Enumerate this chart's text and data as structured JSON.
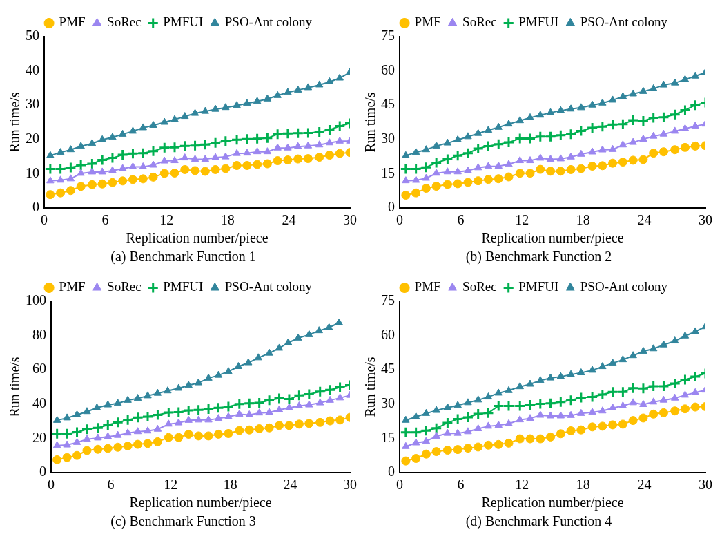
{
  "chart_data": [
    {
      "type": "line",
      "xlabel": "Replication number/piece",
      "ylabel": "Run time/s",
      "annotations": [
        "(a) Benchmark Function 1"
      ],
      "legend": "top",
      "xlim": [
        0,
        30
      ],
      "xticks": [
        0,
        6,
        12,
        18,
        24,
        30
      ],
      "ylim": [
        0,
        50
      ],
      "yticks": [
        0,
        10,
        20,
        30,
        40,
        50
      ],
      "x": [
        0.6,
        1.6,
        2.6,
        3.6,
        4.7,
        5.7,
        6.7,
        7.7,
        8.7,
        9.7,
        10.7,
        11.8,
        12.8,
        13.8,
        14.8,
        15.8,
        16.8,
        17.8,
        18.9,
        19.9,
        20.9,
        21.9,
        22.9,
        23.9,
        24.9,
        25.9,
        27.0,
        28.0,
        29.0,
        30.0
      ],
      "series": [
        {
          "name": "PMF",
          "color": "#ffc000",
          "marker": "circle",
          "values": [
            3.9,
            4.4,
            5.1,
            6.3,
            6.8,
            7.0,
            7.4,
            7.9,
            8.3,
            8.5,
            9.0,
            10.1,
            10.2,
            11.2,
            10.9,
            10.7,
            11.2,
            11.5,
            12.4,
            12.4,
            12.7,
            12.9,
            13.8,
            14.0,
            14.3,
            14.4,
            14.8,
            15.4,
            15.9,
            16.2
          ]
        },
        {
          "name": "SoRec",
          "color": "#9b86f0",
          "marker": "triangle",
          "values": [
            7.9,
            8.1,
            8.5,
            10.1,
            10.5,
            10.5,
            10.9,
            11.5,
            12.0,
            12.0,
            12.5,
            13.7,
            13.8,
            14.6,
            14.2,
            14.2,
            14.7,
            14.9,
            15.9,
            16.0,
            16.4,
            16.4,
            17.5,
            17.5,
            17.9,
            18.1,
            18.4,
            19.0,
            19.5,
            19.5
          ]
        },
        {
          "name": "PMFUI",
          "color": "#00b050",
          "marker": "cross",
          "values": [
            11.4,
            11.4,
            11.8,
            12.5,
            12.9,
            14.0,
            14.6,
            15.5,
            15.9,
            16.0,
            16.6,
            17.6,
            17.7,
            18.1,
            18.2,
            18.5,
            19.0,
            19.5,
            19.9,
            20.1,
            20.2,
            20.4,
            21.5,
            21.7,
            21.8,
            21.9,
            22.2,
            22.8,
            23.9,
            24.7
          ]
        },
        {
          "name": "PSO-Ant colony",
          "color": "#31859c",
          "marker": "triangle",
          "values": [
            15.3,
            16.2,
            17.0,
            18.0,
            18.8,
            19.9,
            20.6,
            21.5,
            22.4,
            23.4,
            24.1,
            25.0,
            25.8,
            26.7,
            27.6,
            28.2,
            28.8,
            29.3,
            29.9,
            30.5,
            31.1,
            31.8,
            32.8,
            33.7,
            34.4,
            35.1,
            35.9,
            36.8,
            37.9,
            39.6
          ]
        }
      ]
    },
    {
      "type": "line",
      "xlabel": "Replication number/piece",
      "ylabel": "Run time/s",
      "annotations": [
        "(b) Benchmark Function 2"
      ],
      "legend": "top",
      "xlim": [
        0,
        30
      ],
      "xticks": [
        0,
        6,
        12,
        18,
        24,
        30
      ],
      "ylim": [
        0,
        75
      ],
      "yticks": [
        0,
        15,
        30,
        45,
        60,
        75
      ],
      "x": [
        0.6,
        1.6,
        2.6,
        3.6,
        4.7,
        5.7,
        6.7,
        7.7,
        8.7,
        9.7,
        10.7,
        11.8,
        12.8,
        13.8,
        14.8,
        15.8,
        16.8,
        17.8,
        18.9,
        19.9,
        20.9,
        21.9,
        22.9,
        23.9,
        24.9,
        25.9,
        27.0,
        28.0,
        29.0,
        30.0
      ],
      "series": [
        {
          "name": "PMF",
          "color": "#ffc000",
          "marker": "circle",
          "values": [
            5.6,
            6.6,
            8.6,
            9.5,
            10.3,
            10.6,
            11.2,
            11.9,
            12.5,
            12.8,
            13.6,
            15.2,
            15.2,
            16.9,
            16.1,
            16.1,
            16.8,
            17.2,
            18.3,
            18.5,
            19.6,
            20.1,
            20.9,
            21.2,
            24.0,
            24.6,
            25.5,
            26.5,
            27.1,
            27.3
          ]
        },
        {
          "name": "SoRec",
          "color": "#9b86f0",
          "marker": "triangle",
          "values": [
            11.9,
            12.1,
            13.0,
            15.2,
            15.8,
            15.8,
            16.3,
            17.6,
            18.2,
            18.3,
            19.1,
            20.7,
            20.7,
            21.8,
            21.3,
            21.5,
            22.3,
            23.5,
            24.5,
            25.4,
            25.6,
            27.6,
            28.7,
            30.1,
            31.4,
            32.3,
            33.6,
            34.7,
            35.8,
            36.7
          ]
        },
        {
          "name": "PMFUI",
          "color": "#00b050",
          "marker": "cross",
          "values": [
            17.1,
            17.1,
            17.8,
            19.8,
            21.3,
            22.9,
            24.0,
            26.0,
            27.1,
            27.9,
            28.7,
            30.4,
            30.4,
            31.2,
            31.2,
            31.8,
            32.3,
            33.7,
            35.1,
            35.6,
            36.5,
            36.7,
            38.4,
            38.1,
            39.5,
            39.7,
            40.9,
            42.8,
            45.0,
            46.1
          ]
        },
        {
          "name": "PSO-Ant colony",
          "color": "#31859c",
          "marker": "triangle",
          "values": [
            22.9,
            24.3,
            25.5,
            27.1,
            28.4,
            29.8,
            31.2,
            32.6,
            34.0,
            35.3,
            36.7,
            38.2,
            39.5,
            40.6,
            41.7,
            42.6,
            43.3,
            43.9,
            45.0,
            45.9,
            47.2,
            48.7,
            49.9,
            51.0,
            52.2,
            53.8,
            54.7,
            56.2,
            57.7,
            59.3
          ]
        }
      ]
    },
    {
      "type": "line",
      "xlabel": "Replication number/piece",
      "ylabel": "Run time/s",
      "annotations": [
        "(c) Benchmark Function 3"
      ],
      "legend": "top",
      "xlim": [
        0,
        30
      ],
      "xticks": [
        0,
        6,
        12,
        18,
        24,
        30
      ],
      "ylim": [
        0,
        100
      ],
      "yticks": [
        0,
        20,
        40,
        60,
        80,
        100
      ],
      "x": [
        0.6,
        1.6,
        2.6,
        3.6,
        4.7,
        5.7,
        6.7,
        7.7,
        8.7,
        9.7,
        10.7,
        11.8,
        12.8,
        13.8,
        14.8,
        15.8,
        16.8,
        17.8,
        18.9,
        19.9,
        20.9,
        21.9,
        22.9,
        23.9,
        24.9,
        25.9,
        27.0,
        28.0,
        29.0,
        30.0
      ],
      "series": [
        {
          "name": "PMF",
          "color": "#ffc000",
          "marker": "circle",
          "values": [
            7.5,
            8.8,
            10.0,
            12.9,
            13.6,
            14.1,
            14.8,
            15.5,
            16.5,
            17.0,
            18.0,
            20.5,
            20.5,
            22.4,
            21.4,
            21.4,
            22.4,
            22.8,
            24.6,
            24.9,
            25.6,
            26.1,
            27.5,
            27.5,
            28.3,
            28.7,
            29.3,
            30.2,
            30.7,
            32.2
          ]
        },
        {
          "name": "SoRec",
          "color": "#9b86f0",
          "marker": "triangle",
          "values": [
            15.8,
            16.1,
            17.6,
            19.5,
            20.2,
            21.0,
            21.7,
            23.1,
            23.9,
            24.3,
            25.3,
            28.3,
            29.0,
            30.5,
            30.7,
            30.7,
            31.6,
            32.6,
            34.1,
            33.7,
            34.8,
            35.1,
            36.6,
            37.8,
            38.9,
            39.5,
            40.7,
            42.2,
            43.6,
            45.1
          ]
        },
        {
          "name": "PMFUI",
          "color": "#00b050",
          "marker": "cross",
          "values": [
            22.7,
            22.7,
            23.6,
            25.3,
            26.1,
            27.8,
            29.3,
            30.7,
            32.2,
            32.7,
            33.7,
            35.1,
            35.3,
            36.3,
            36.6,
            37.1,
            37.8,
            38.5,
            40.0,
            40.4,
            40.7,
            42.2,
            43.3,
            42.9,
            45.1,
            45.8,
            47.3,
            48.3,
            49.8,
            51.0
          ]
        },
        {
          "name": "PSO-Ant colony",
          "color": "#31859c",
          "marker": "triangle",
          "x": [
            0.6,
            1.6,
            2.6,
            3.6,
            4.6,
            5.7,
            6.7,
            7.7,
            8.7,
            9.7,
            10.7,
            11.7,
            12.8,
            13.8,
            14.8,
            15.8,
            16.8,
            17.8,
            18.8,
            19.8,
            20.8,
            21.9,
            22.9,
            23.8,
            24.8,
            25.9,
            26.9,
            27.9,
            28.9
          ],
          "values": [
            30.5,
            31.9,
            33.7,
            35.6,
            37.8,
            39.5,
            40.4,
            42.2,
            43.3,
            44.8,
            46.3,
            47.7,
            49.2,
            50.9,
            52.4,
            55.1,
            56.8,
            59.0,
            61.9,
            64.1,
            67.0,
            69.7,
            72.6,
            75.8,
            78.5,
            80.5,
            82.8,
            84.6,
            87.5
          ]
        }
      ]
    },
    {
      "type": "line",
      "xlabel": "Replication number/piece",
      "ylabel": "Run time/s",
      "annotations": [
        "(d) Benchmark Function 4"
      ],
      "legend": "top",
      "xlim": [
        0,
        30
      ],
      "xticks": [
        0,
        6,
        12,
        18,
        24,
        30
      ],
      "ylim": [
        0,
        75
      ],
      "yticks": [
        0,
        15,
        30,
        45,
        60,
        75
      ],
      "x": [
        0.6,
        1.6,
        2.6,
        3.6,
        4.7,
        5.7,
        6.7,
        7.7,
        8.7,
        9.7,
        10.7,
        11.8,
        12.8,
        13.8,
        14.8,
        15.8,
        16.8,
        17.8,
        18.9,
        19.9,
        20.9,
        21.9,
        22.9,
        23.9,
        24.9,
        25.9,
        27.0,
        28.0,
        29.0,
        30.0
      ],
      "series": [
        {
          "name": "PMF",
          "color": "#ffc000",
          "marker": "circle",
          "values": [
            5.1,
            6.2,
            8.1,
            9.2,
            9.8,
            10.1,
            10.7,
            11.2,
            12.0,
            12.3,
            12.9,
            14.8,
            14.8,
            14.8,
            15.6,
            17.0,
            18.3,
            18.7,
            20.0,
            20.3,
            20.9,
            21.2,
            22.8,
            23.9,
            25.6,
            26.2,
            27.0,
            27.9,
            28.7,
            28.9
          ]
        },
        {
          "name": "SoRec",
          "color": "#9b86f0",
          "marker": "triangle",
          "values": [
            11.4,
            13.0,
            13.7,
            15.9,
            17.2,
            17.2,
            17.9,
            19.2,
            20.3,
            20.7,
            21.4,
            23.1,
            23.7,
            25.1,
            24.8,
            24.8,
            25.0,
            25.9,
            26.4,
            27.0,
            28.3,
            29.2,
            30.6,
            29.8,
            30.9,
            31.7,
            32.6,
            33.9,
            35.0,
            36.1
          ]
        },
        {
          "name": "PMFUI",
          "color": "#00b050",
          "marker": "cross",
          "values": [
            17.6,
            17.6,
            18.4,
            19.4,
            21.8,
            23.4,
            24.2,
            25.7,
            26.1,
            29.2,
            29.2,
            29.2,
            29.6,
            30.1,
            30.3,
            30.9,
            31.7,
            32.8,
            33.1,
            34.2,
            35.3,
            35.3,
            37.0,
            36.8,
            37.8,
            37.8,
            39.0,
            40.7,
            42.0,
            43.4
          ]
        },
        {
          "name": "PSO-Ant colony",
          "color": "#31859c",
          "marker": "triangle",
          "values": [
            22.9,
            24.4,
            25.9,
            27.2,
            28.4,
            29.4,
            30.6,
            31.8,
            33.1,
            34.8,
            35.9,
            37.6,
            38.7,
            40.3,
            41.4,
            42.0,
            42.9,
            43.7,
            44.8,
            46.4,
            47.9,
            49.4,
            51.2,
            53.1,
            54.2,
            55.9,
            57.6,
            59.8,
            61.7,
            63.9
          ]
        }
      ]
    }
  ]
}
